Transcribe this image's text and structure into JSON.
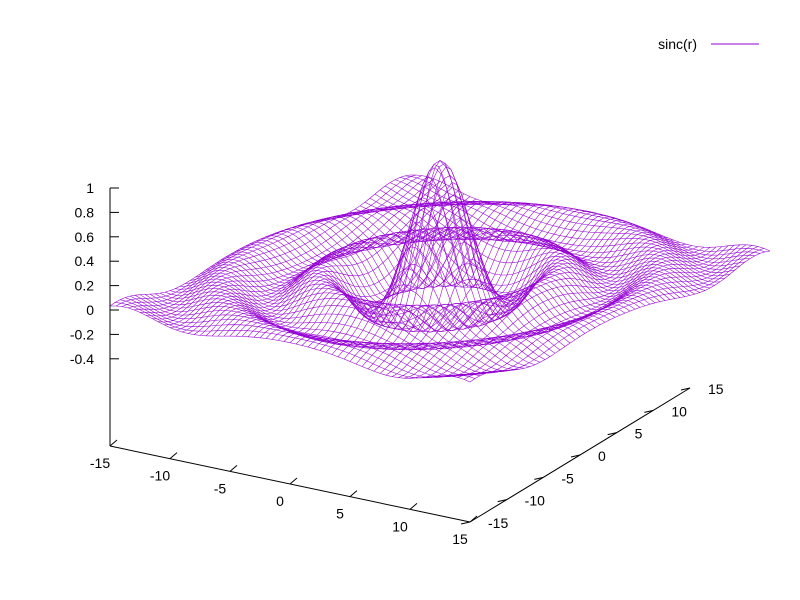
{
  "chart_data": {
    "type": "surface",
    "function": "sinc(r)",
    "series": [
      {
        "name": "sinc(r)",
        "color": "#9400d3"
      }
    ],
    "legend": {
      "label": "sinc(r)",
      "placement": "top-right"
    },
    "x": {
      "range": [
        -15,
        15
      ],
      "ticks": [
        -15,
        -10,
        -5,
        0,
        5,
        10,
        15
      ],
      "tick_labels": [
        "-15",
        "-10",
        "-5",
        "0",
        "5",
        "10",
        "15"
      ]
    },
    "y": {
      "range": [
        -15,
        15
      ],
      "ticks": [
        -15,
        -10,
        -5,
        0,
        5,
        10,
        15
      ],
      "tick_labels": [
        "-15",
        "-10",
        "-5",
        "0",
        "5",
        "10",
        "15"
      ]
    },
    "z": {
      "range": [
        -0.4,
        1
      ],
      "ticks": [
        -0.4,
        -0.2,
        0,
        0.2,
        0.4,
        0.6,
        0.8,
        1
      ],
      "tick_labels": [
        "-0.4",
        "-0.2",
        "0",
        "0.2",
        "0.4",
        "0.6",
        "0.8",
        "1"
      ]
    },
    "grid": false
  }
}
